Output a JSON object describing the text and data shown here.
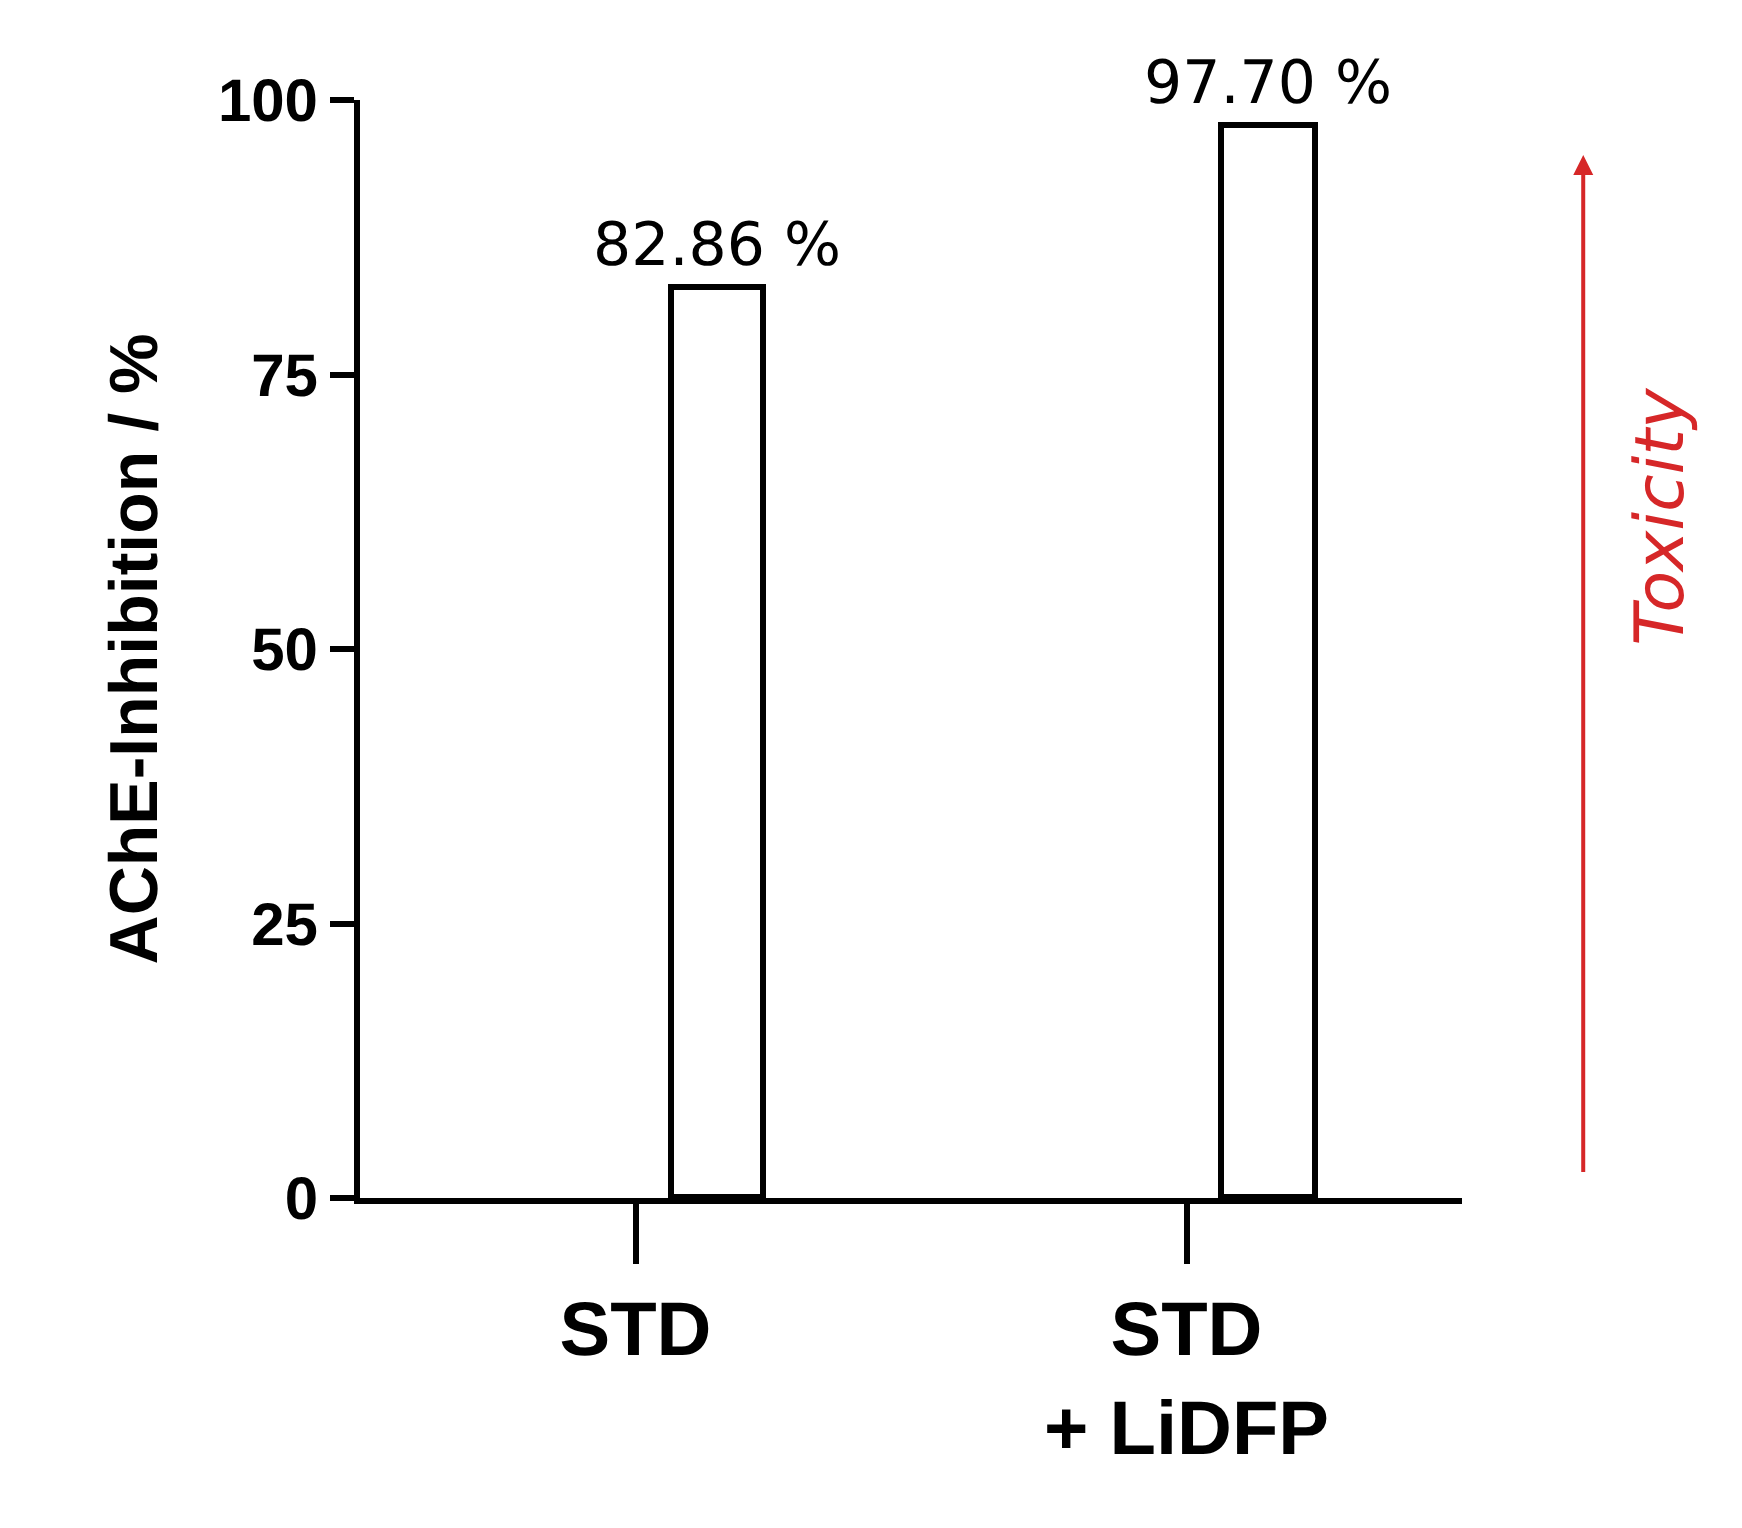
{
  "chart_data": {
    "type": "bar",
    "ylabel": "AChE-Inhibition / %",
    "categories": [
      "STD",
      "STD\n+ LiDFP"
    ],
    "values": [
      82.86,
      97.7
    ],
    "value_labels": [
      "82.86 %",
      "97.70 %"
    ],
    "color": "#ffffff",
    "ylim": [
      0,
      100
    ],
    "yticks": [
      0,
      25,
      50,
      75,
      100
    ],
    "legend": false,
    "annotations": [
      "Toxicity"
    ]
  }
}
